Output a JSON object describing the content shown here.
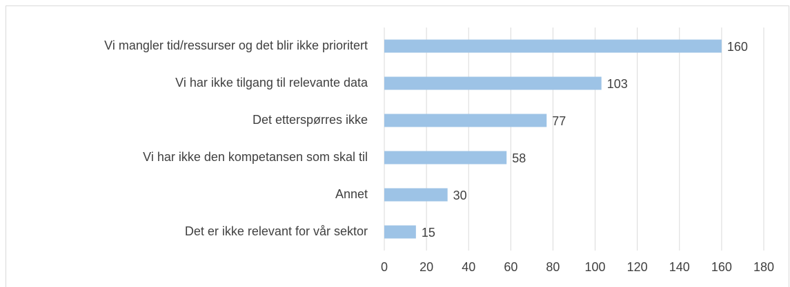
{
  "chart_data": {
    "type": "bar",
    "orientation": "horizontal",
    "categories": [
      "Vi mangler tid/ressurser og det blir ikke prioritert",
      "Vi har ikke tilgang til relevante data",
      "Det etterspørres ikke",
      "Vi har ikke den kompetansen som skal til",
      "Annet",
      "Det er ikke relevant for vår sektor"
    ],
    "values": [
      160,
      103,
      77,
      58,
      30,
      15
    ],
    "color": "#9dc3e6",
    "xlim": [
      0,
      180
    ],
    "xticks": [
      0,
      20,
      40,
      60,
      80,
      100,
      120,
      140,
      160,
      180
    ],
    "grid": true
  }
}
